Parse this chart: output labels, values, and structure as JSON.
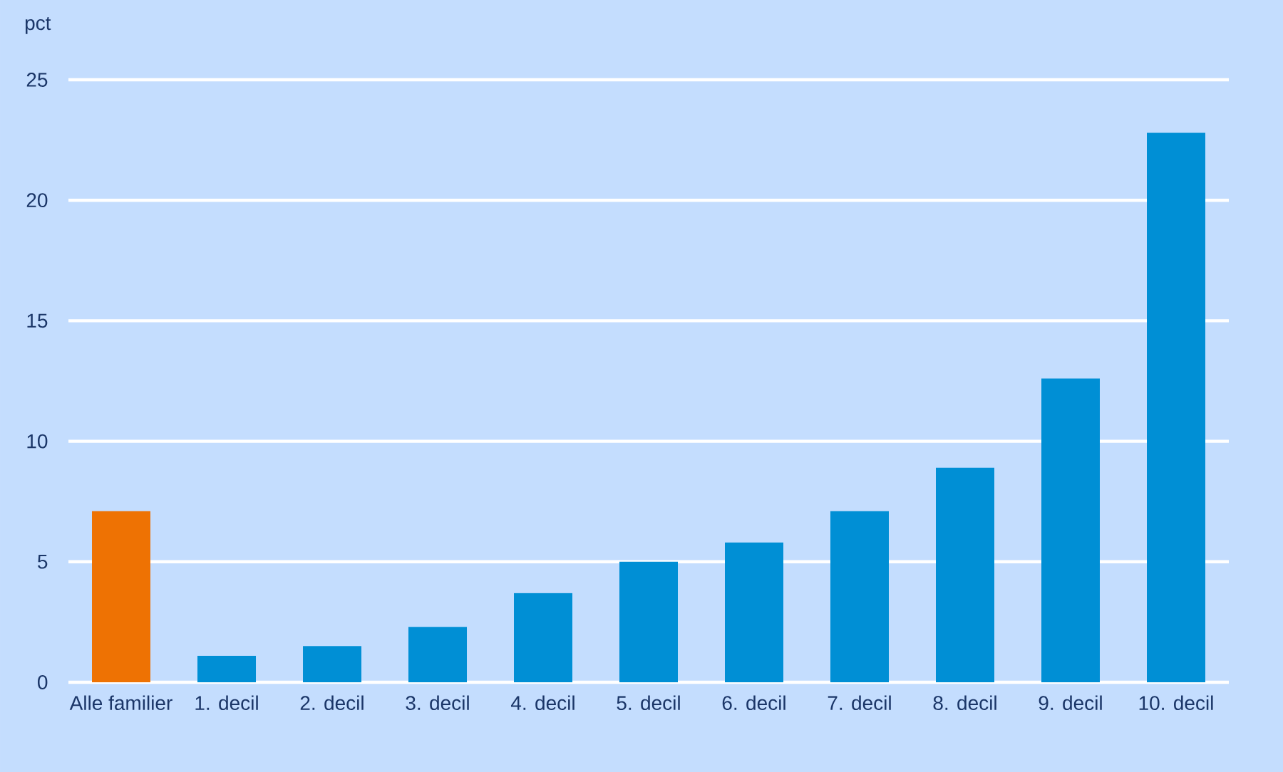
{
  "chart_data": {
    "type": "bar",
    "ylabel": "pct",
    "categories": [
      "Alle familier",
      "1. decil",
      "2. decil",
      "3. decil",
      "4. decil",
      "5. decil",
      "6. decil",
      "7. decil",
      "8. decil",
      "9. decil",
      "10. decil"
    ],
    "values": [
      7.1,
      1.1,
      1.5,
      2.3,
      3.7,
      5.0,
      5.8,
      7.1,
      8.9,
      12.6,
      22.8
    ],
    "colors": [
      "#ee7203",
      "#008fd5",
      "#008fd5",
      "#008fd5",
      "#008fd5",
      "#008fd5",
      "#008fd5",
      "#008fd5",
      "#008fd5",
      "#008fd5",
      "#008fd5"
    ],
    "ylim": [
      0,
      25
    ],
    "yticks": [
      0,
      5,
      10,
      15,
      20,
      25
    ],
    "grid": "y"
  }
}
